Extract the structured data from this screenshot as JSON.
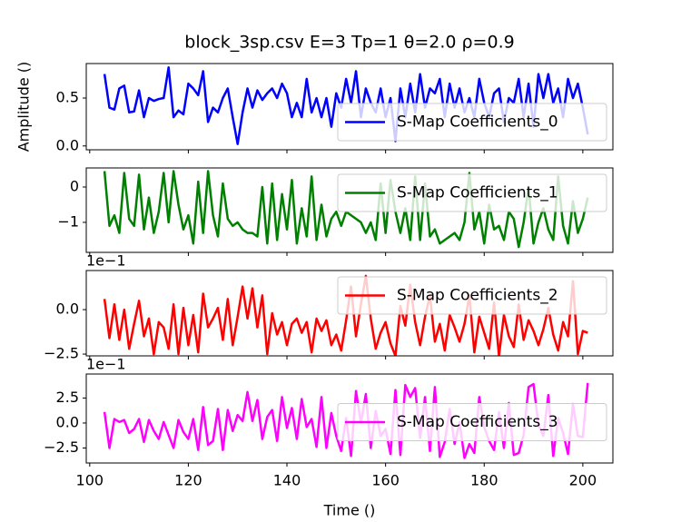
{
  "chart_data": [
    {
      "type": "line",
      "title": "block_3sp.csv  E=3 Tp=1 θ=2.0 ρ=0.9",
      "ylabel": "Amplitude ()",
      "x": [
        103,
        104,
        105,
        106,
        107,
        108,
        109,
        110,
        111,
        112,
        113,
        114,
        115,
        116,
        117,
        118,
        119,
        120,
        121,
        122,
        123,
        124,
        125,
        126,
        127,
        128,
        129,
        130,
        131,
        132,
        133,
        134,
        135,
        136,
        137,
        138,
        139,
        140,
        141,
        142,
        143,
        144,
        145,
        146,
        147,
        148,
        149,
        150,
        151,
        152,
        153,
        154,
        155,
        156,
        157,
        158,
        159,
        160,
        161,
        162,
        163,
        164,
        165,
        166,
        167,
        168,
        169,
        170,
        171,
        172,
        173,
        174,
        175,
        176,
        177,
        178,
        179,
        180,
        181,
        182,
        183,
        184,
        185,
        186,
        187,
        188,
        189,
        190,
        191,
        192,
        193,
        194,
        195,
        196,
        197,
        198,
        199,
        200,
        201
      ],
      "series": [
        {
          "name": "S-Map Coefficients_0",
          "color": "#0000ff",
          "values": [
            0.75,
            0.4,
            0.38,
            0.6,
            0.63,
            0.35,
            0.36,
            0.58,
            0.3,
            0.5,
            0.47,
            0.49,
            0.5,
            0.82,
            0.3,
            0.37,
            0.33,
            0.65,
            0.6,
            0.53,
            0.78,
            0.25,
            0.4,
            0.35,
            0.5,
            0.6,
            0.3,
            0.02,
            0.35,
            0.6,
            0.4,
            0.58,
            0.48,
            0.55,
            0.6,
            0.5,
            0.65,
            0.55,
            0.3,
            0.45,
            0.3,
            0.7,
            0.35,
            0.5,
            0.3,
            0.5,
            0.2,
            0.55,
            0.4,
            0.7,
            0.45,
            0.78,
            0.3,
            0.6,
            0.45,
            0.35,
            0.6,
            0.3,
            0.5,
            0.05,
            0.6,
            0.3,
            0.65,
            0.35,
            0.75,
            0.4,
            0.6,
            0.55,
            0.7,
            0.3,
            0.65,
            0.4,
            0.6,
            0.35,
            0.5,
            0.3,
            0.7,
            0.45,
            0.3,
            0.55,
            0.6,
            0.25,
            0.5,
            0.45,
            0.7,
            0.3,
            0.65,
            0.2,
            0.75,
            0.5,
            0.75,
            0.45,
            0.6,
            0.3,
            0.7,
            0.5,
            0.65,
            0.4,
            0.12
          ]
        }
      ],
      "xlim": [
        99.3,
        206.1
      ],
      "xticks": [
        100,
        120,
        140,
        160,
        180,
        200
      ],
      "xticklabels": false,
      "ylim": [
        -0.04,
        0.86
      ],
      "yticks": [
        {
          "value": 0,
          "label": "0.0"
        },
        0.5
      ],
      "legend": "lower right"
    },
    {
      "type": "line",
      "x": [
        103,
        104,
        105,
        106,
        107,
        108,
        109,
        110,
        111,
        112,
        113,
        114,
        115,
        116,
        117,
        118,
        119,
        120,
        121,
        122,
        123,
        124,
        125,
        126,
        127,
        128,
        129,
        130,
        131,
        132,
        133,
        134,
        135,
        136,
        137,
        138,
        139,
        140,
        141,
        142,
        143,
        144,
        145,
        146,
        147,
        148,
        149,
        150,
        151,
        152,
        153,
        154,
        155,
        156,
        157,
        158,
        159,
        160,
        161,
        162,
        163,
        164,
        165,
        166,
        167,
        168,
        169,
        170,
        171,
        172,
        173,
        174,
        175,
        176,
        177,
        178,
        179,
        180,
        181,
        182,
        183,
        184,
        185,
        186,
        187,
        188,
        189,
        190,
        191,
        192,
        193,
        194,
        195,
        196,
        197,
        198,
        199,
        200,
        201
      ],
      "series": [
        {
          "name": "S-Map Coefficients_1",
          "color": "#008000",
          "values": [
            0.45,
            -1.1,
            -0.8,
            -1.3,
            0.4,
            -0.9,
            -1.1,
            0.35,
            -1.2,
            -0.3,
            -1.3,
            -0.7,
            0.4,
            -1.0,
            0.45,
            -0.5,
            -1.2,
            -0.8,
            -1.6,
            0.15,
            -1.3,
            0.45,
            -0.8,
            -1.4,
            0.1,
            -0.9,
            -1.1,
            -1.0,
            -1.2,
            -1.3,
            -1.3,
            -1.4,
            0.0,
            -1.6,
            0.1,
            -1.5,
            -0.2,
            -1.2,
            0.2,
            -1.6,
            -0.6,
            -1.4,
            0.3,
            -1.5,
            -0.5,
            -1.4,
            -0.9,
            -0.7,
            -1.1,
            -0.7,
            -0.8,
            -0.9,
            -1.0,
            -1.3,
            -1.0,
            -1.5,
            0.1,
            -1.3,
            0.2,
            -0.7,
            -1.3,
            -0.6,
            -1.5,
            0.3,
            -1.5,
            0.1,
            -1.4,
            -1.2,
            -1.6,
            -1.5,
            -1.4,
            -1.3,
            -1.5,
            -1.0,
            0.4,
            -1.2,
            -0.7,
            -1.6,
            -0.5,
            -1.2,
            -1.1,
            -1.5,
            -0.7,
            -0.9,
            -1.7,
            -1.0,
            0.0,
            -1.6,
            -1.0,
            -0.6,
            -1.2,
            -1.5,
            0.3,
            -1.1,
            -1.6,
            -0.4,
            -1.3,
            -0.9,
            -0.3
          ]
        }
      ],
      "xlim": [
        99.3,
        206.1
      ],
      "xticks": [
        100,
        120,
        140,
        160,
        180,
        200
      ],
      "xticklabels": false,
      "ylim": [
        -1.85,
        0.54
      ],
      "yticks": [
        {
          "value": -1,
          "label": "−1"
        },
        0
      ],
      "legend": "upper right"
    },
    {
      "type": "line",
      "offset_text": "1e−1",
      "x": [
        103,
        104,
        105,
        106,
        107,
        108,
        109,
        110,
        111,
        112,
        113,
        114,
        115,
        116,
        117,
        118,
        119,
        120,
        121,
        122,
        123,
        124,
        125,
        126,
        127,
        128,
        129,
        130,
        131,
        132,
        133,
        134,
        135,
        136,
        137,
        138,
        139,
        140,
        141,
        142,
        143,
        144,
        145,
        146,
        147,
        148,
        149,
        150,
        151,
        152,
        153,
        154,
        155,
        156,
        157,
        158,
        159,
        160,
        161,
        162,
        163,
        164,
        165,
        166,
        167,
        168,
        169,
        170,
        171,
        172,
        173,
        174,
        175,
        176,
        177,
        178,
        179,
        180,
        181,
        182,
        183,
        184,
        185,
        186,
        187,
        188,
        189,
        190,
        191,
        192,
        193,
        194,
        195,
        196,
        197,
        198,
        199,
        200,
        201
      ],
      "series": [
        {
          "name": "S-Map Coefficients_2",
          "color": "#ff0000",
          "values": [
            0.6,
            -1.6,
            0.3,
            -1.7,
            0.0,
            -2.2,
            -0.8,
            0.5,
            -1.5,
            -0.5,
            -2.5,
            -0.7,
            -1.0,
            -2.2,
            0.3,
            -2.5,
            0.1,
            -2.0,
            -0.3,
            -2.4,
            0.9,
            -1.0,
            -0.5,
            0.1,
            -1.7,
            0.6,
            -2.0,
            -0.4,
            1.3,
            -0.5,
            1.2,
            -1.0,
            0.8,
            -2.5,
            -0.2,
            -1.4,
            -0.7,
            -2.0,
            -0.8,
            -0.5,
            -1.3,
            -0.7,
            -2.4,
            -0.5,
            -1.2,
            -0.6,
            -2.0,
            -1.4,
            -2.3,
            -0.6,
            1.3,
            -1.5,
            0.3,
            1.9,
            -0.5,
            -2.2,
            -1.3,
            -0.7,
            -1.9,
            -2.6,
            0.2,
            -0.9,
            1.4,
            -0.7,
            -2.0,
            -0.4,
            0.8,
            -1.8,
            -0.8,
            -2.3,
            -0.3,
            -1.0,
            -1.8,
            -0.8,
            0.8,
            -2.4,
            -0.4,
            -1.3,
            -2.2,
            0.4,
            -2.6,
            -0.3,
            -1.5,
            -2.1,
            0.3,
            -1.7,
            -0.6,
            -1.2,
            -2.0,
            -1.1,
            0.1,
            -1.4,
            -2.3,
            -0.7,
            -1.5,
            1.6,
            -2.5,
            -1.2,
            -1.3
          ]
        }
      ],
      "xlim": [
        99.3,
        206.1
      ],
      "xticks": [
        100,
        120,
        140,
        160,
        180,
        200
      ],
      "xticklabels": false,
      "ylim": [
        -2.6,
        2.2
      ],
      "yticks": [
        {
          "value": -2.5,
          "label": "−2.5"
        },
        {
          "value": 0,
          "label": "0.0"
        }
      ],
      "legend": "upper right"
    },
    {
      "type": "line",
      "offset_text": "1e−1",
      "xlabel": "Time ()",
      "x": [
        103,
        104,
        105,
        106,
        107,
        108,
        109,
        110,
        111,
        112,
        113,
        114,
        115,
        116,
        117,
        118,
        119,
        120,
        121,
        122,
        123,
        124,
        125,
        126,
        127,
        128,
        129,
        130,
        131,
        132,
        133,
        134,
        135,
        136,
        137,
        138,
        139,
        140,
        141,
        142,
        143,
        144,
        145,
        146,
        147,
        148,
        149,
        150,
        151,
        152,
        153,
        154,
        155,
        156,
        157,
        158,
        159,
        160,
        161,
        162,
        163,
        164,
        165,
        166,
        167,
        168,
        169,
        170,
        171,
        172,
        173,
        174,
        175,
        176,
        177,
        178,
        179,
        180,
        181,
        182,
        183,
        184,
        185,
        186,
        187,
        188,
        189,
        190,
        191,
        192,
        193,
        194,
        195,
        196,
        197,
        198,
        199,
        200,
        201
      ],
      "series": [
        {
          "name": "S-Map Coefficients_3",
          "color": "#ff00ff",
          "values": [
            1.1,
            -2.5,
            0.4,
            0.1,
            0.3,
            -1.0,
            -0.6,
            0.4,
            -1.9,
            0.3,
            -0.8,
            -1.6,
            0.1,
            -1.2,
            -2.5,
            0.3,
            -0.9,
            -1.6,
            0.4,
            -2.7,
            1.6,
            -2.2,
            -1.8,
            1.4,
            -2.7,
            1.3,
            -0.8,
            0.8,
            0.2,
            3.1,
            0.2,
            2.3,
            -1.6,
            0.6,
            1.3,
            -1.8,
            2.6,
            -0.5,
            1.5,
            -1.6,
            2.4,
            -0.4,
            0.4,
            -2.4,
            2.6,
            -2.5,
            1.0,
            -1.3,
            -2.8,
            0.5,
            -3.3,
            3.2,
            0.0,
            2.9,
            -2.5,
            1.2,
            -1.3,
            -0.6,
            -3.1,
            3.3,
            -3.2,
            3.8,
            2.6,
            3.5,
            -1.5,
            2.6,
            -2.8,
            3.6,
            -3.4,
            -1.9,
            1.4,
            -2.1,
            0.1,
            -3.5,
            -2.1,
            -3.0,
            2.6,
            -0.4,
            -1.8,
            -2.7,
            1.1,
            -2.5,
            2.0,
            -3.2,
            -3.0,
            -1.2,
            3.6,
            3.9,
            -0.2,
            -1.3,
            2.8,
            -3.3,
            0.5,
            -1.0,
            -3.1,
            1.9,
            -1.3,
            -1.4,
            4.0
          ]
        }
      ],
      "xlim": [
        99.3,
        206.1
      ],
      "xticks": [
        100,
        120,
        140,
        160,
        180,
        200
      ],
      "xticklabels": true,
      "ylim": [
        -4.0,
        4.9
      ],
      "yticks": [
        {
          "value": -2.5,
          "label": "−2.5"
        },
        {
          "value": 0,
          "label": "0.0"
        },
        2.5
      ],
      "legend": "center right"
    }
  ]
}
